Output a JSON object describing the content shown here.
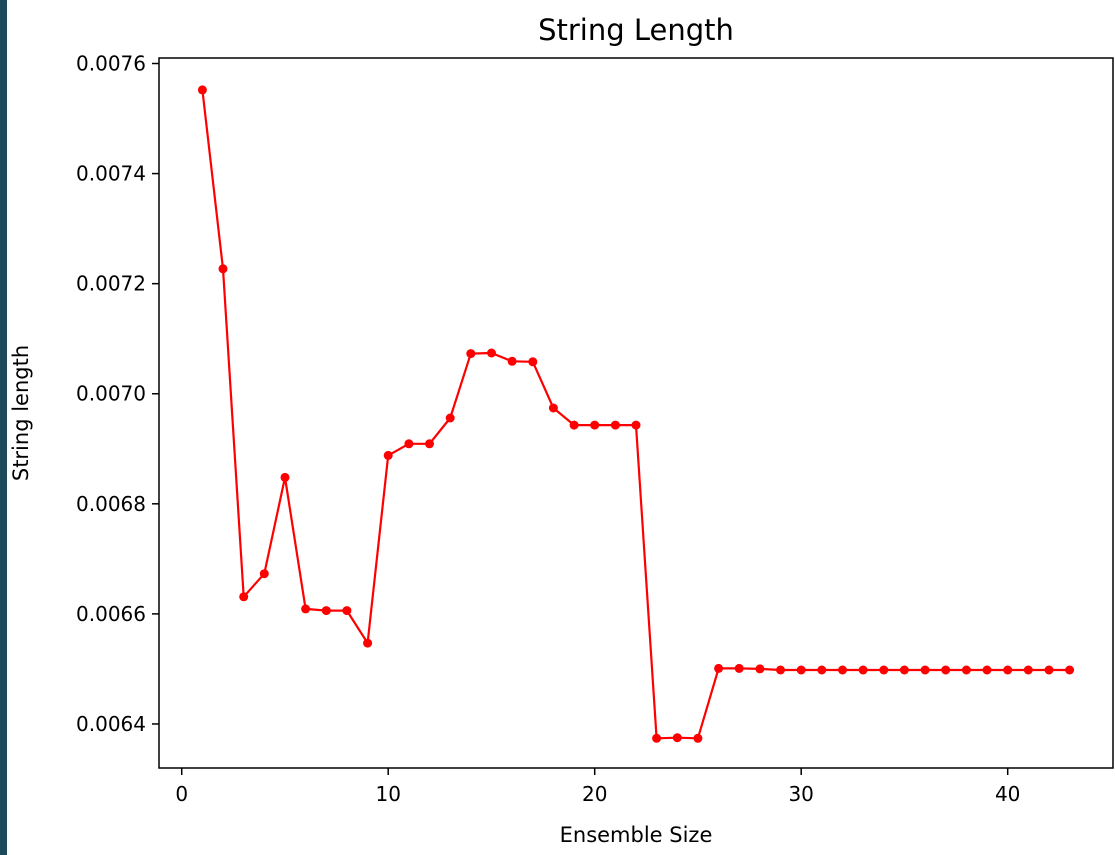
{
  "window": {
    "strip_color": "#1d4a5a"
  },
  "chart_data": {
    "type": "line",
    "title": "String Length",
    "xlabel": "Ensemble Size",
    "ylabel": "String length",
    "xlim": [
      -1.1,
      45.1
    ],
    "ylim": [
      0.00632,
      0.00761
    ],
    "x_ticks": [
      0,
      10,
      20,
      30,
      40
    ],
    "y_ticks": [
      0.0064,
      0.0066,
      0.0068,
      0.007,
      0.0072,
      0.0074,
      0.0076
    ],
    "x_tick_labels": [
      "0",
      "10",
      "20",
      "30",
      "40"
    ],
    "y_tick_labels": [
      "0.0064",
      "0.0066",
      "0.0068",
      "0.0070",
      "0.0072",
      "0.0074",
      "0.0076"
    ],
    "grid": false,
    "legend": "none",
    "series": [
      {
        "color": "#ff0000",
        "marker": "circle",
        "x": [
          1,
          2,
          3,
          4,
          5,
          6,
          7,
          8,
          9,
          10,
          11,
          12,
          13,
          14,
          15,
          16,
          17,
          18,
          19,
          20,
          21,
          22,
          23,
          24,
          25,
          26,
          27,
          28,
          29,
          30,
          31,
          32,
          33,
          34,
          35,
          36,
          37,
          38,
          39,
          40,
          41,
          42,
          43
        ],
        "y": [
          0.007552,
          0.007227,
          0.006631,
          0.006673,
          0.006848,
          0.006609,
          0.006606,
          0.006606,
          0.006547,
          0.006888,
          0.006909,
          0.006909,
          0.006956,
          0.007073,
          0.007074,
          0.007059,
          0.007058,
          0.006974,
          0.006943,
          0.006943,
          0.006943,
          0.006943,
          0.006374,
          0.006375,
          0.006374,
          0.006501,
          0.006501,
          0.0065,
          0.006498,
          0.006498,
          0.006498,
          0.006498,
          0.006498,
          0.006498,
          0.006498,
          0.006498,
          0.006498,
          0.006498,
          0.006498,
          0.006498,
          0.006498,
          0.006498,
          0.006498
        ]
      }
    ]
  }
}
